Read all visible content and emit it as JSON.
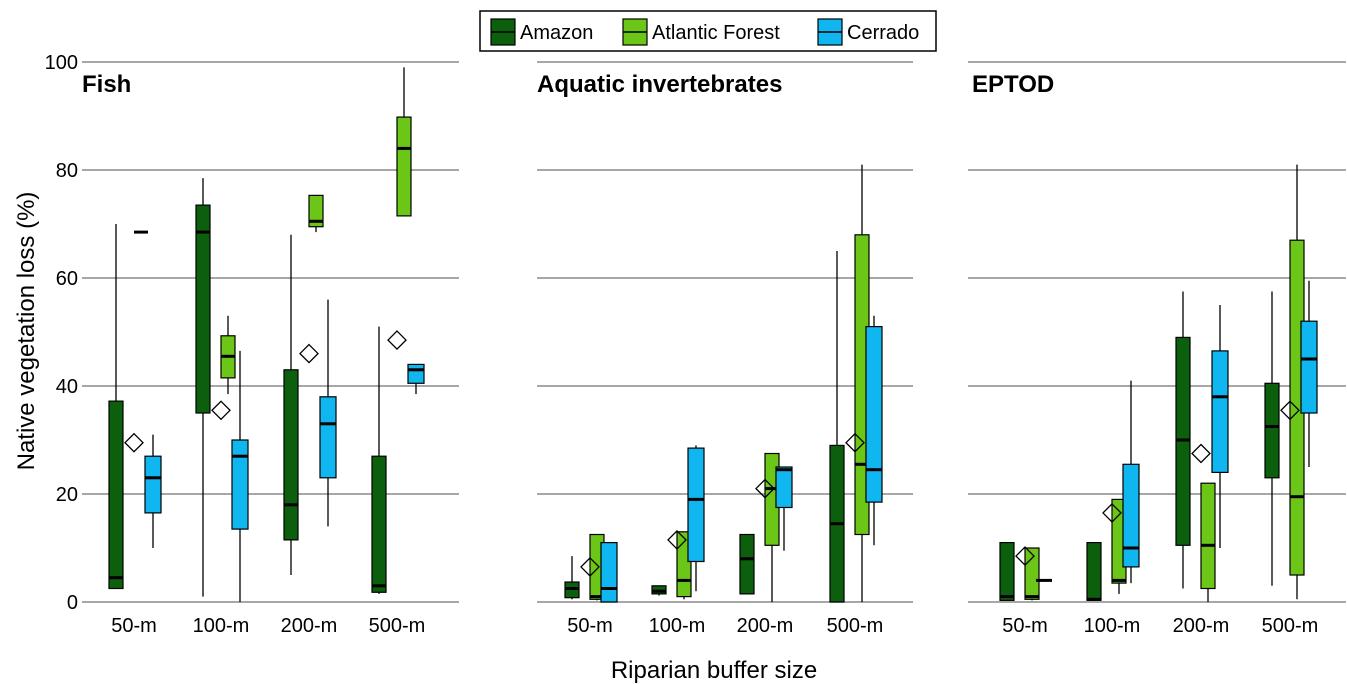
{
  "chart_data": {
    "type": "boxplot",
    "ylabel": "Native vegetation loss (%)",
    "xlabel": "Riparian buffer size",
    "ylim": [
      0,
      100
    ],
    "yticks": [
      0,
      20,
      40,
      60,
      80,
      100
    ],
    "categories": [
      "50-m",
      "100-m",
      "200-m",
      "500-m"
    ],
    "grid": "horizontal",
    "legend": {
      "position": "top-center",
      "entries": [
        {
          "name": "Amazon",
          "color": "#0c5f0c"
        },
        {
          "name": "Atlantic Forest",
          "color": "#6cc617"
        },
        {
          "name": "Cerrado",
          "color": "#10b6f0"
        }
      ]
    },
    "marker": {
      "shape": "diamond",
      "meaning": ""
    },
    "panels": [
      {
        "title": "Fish",
        "show_y_ticks": true,
        "groups": [
          {
            "category": "50-m",
            "diamond": 29.5,
            "boxes": [
              {
                "series": "Amazon",
                "whisker_low": 2.5,
                "q1": 2.5,
                "median": 4.5,
                "q3": 37.2,
                "whisker_high": 70
              },
              {
                "series": "Atlantic Forest",
                "whisker_low": 68.5,
                "q1": 68.5,
                "median": 68.5,
                "q3": 68.5,
                "whisker_high": 68.5
              },
              {
                "series": "Cerrado",
                "whisker_low": 10,
                "q1": 16.5,
                "median": 23,
                "q3": 27,
                "whisker_high": 31
              }
            ]
          },
          {
            "category": "100-m",
            "diamond": 35.5,
            "boxes": [
              {
                "series": "Amazon",
                "whisker_low": 1,
                "q1": 35,
                "median": 68.5,
                "q3": 73.5,
                "whisker_high": 78.5
              },
              {
                "series": "Atlantic Forest",
                "whisker_low": 38.5,
                "q1": 41.5,
                "median": 45.5,
                "q3": 49.3,
                "whisker_high": 53
              },
              {
                "series": "Cerrado",
                "whisker_low": 0,
                "q1": 13.5,
                "median": 27,
                "q3": 30,
                "whisker_high": 46.5
              }
            ]
          },
          {
            "category": "200-m",
            "diamond": 46,
            "boxes": [
              {
                "series": "Amazon",
                "whisker_low": 5,
                "q1": 11.5,
                "median": 18,
                "q3": 43,
                "whisker_high": 68
              },
              {
                "series": "Atlantic Forest",
                "whisker_low": 68.5,
                "q1": 69.5,
                "median": 70.5,
                "q3": 75.3,
                "whisker_high": 75.3
              },
              {
                "series": "Cerrado",
                "whisker_low": 14,
                "q1": 23,
                "median": 33,
                "q3": 38,
                "whisker_high": 56
              }
            ]
          },
          {
            "category": "500-m",
            "diamond": 48.5,
            "boxes": [
              {
                "series": "Amazon",
                "whisker_low": 1.5,
                "q1": 1.8,
                "median": 3,
                "q3": 27,
                "whisker_high": 51
              },
              {
                "series": "Atlantic Forest",
                "whisker_low": 71.5,
                "q1": 71.5,
                "median": 84,
                "q3": 89.8,
                "whisker_high": 99
              },
              {
                "series": "Cerrado",
                "whisker_low": 38.5,
                "q1": 40.5,
                "median": 43,
                "q3": 44,
                "whisker_high": 44
              }
            ]
          }
        ]
      },
      {
        "title": "Aquatic invertebrates",
        "show_y_ticks": false,
        "groups": [
          {
            "category": "50-m",
            "diamond": 6.5,
            "boxes": [
              {
                "series": "Amazon",
                "whisker_low": 0.5,
                "q1": 0.8,
                "median": 2.5,
                "q3": 3.7,
                "whisker_high": 8.5
              },
              {
                "series": "Atlantic Forest",
                "whisker_low": 0.3,
                "q1": 0.5,
                "median": 1,
                "q3": 12.5,
                "whisker_high": 12.5
              },
              {
                "series": "Cerrado",
                "whisker_low": 0,
                "q1": 0,
                "median": 2.5,
                "q3": 11,
                "whisker_high": 11
              }
            ]
          },
          {
            "category": "100-m",
            "diamond": 11.5,
            "boxes": [
              {
                "series": "Amazon",
                "whisker_low": 1.2,
                "q1": 1.5,
                "median": 2,
                "q3": 3,
                "whisker_high": 3
              },
              {
                "series": "Atlantic Forest",
                "whisker_low": 0.5,
                "q1": 1,
                "median": 4,
                "q3": 13,
                "whisker_high": 13
              },
              {
                "series": "Cerrado",
                "whisker_low": 2,
                "q1": 7.5,
                "median": 19,
                "q3": 28.5,
                "whisker_high": 29
              }
            ]
          },
          {
            "category": "200-m",
            "diamond": 21,
            "boxes": [
              {
                "series": "Amazon",
                "whisker_low": 1.5,
                "q1": 1.5,
                "median": 8,
                "q3": 12.5,
                "whisker_high": 12.5
              },
              {
                "series": "Atlantic Forest",
                "whisker_low": 0,
                "q1": 10.5,
                "median": 21,
                "q3": 27.5,
                "whisker_high": 27.5
              },
              {
                "series": "Cerrado",
                "whisker_low": 9.5,
                "q1": 17.5,
                "median": 24.5,
                "q3": 25,
                "whisker_high": 25
              }
            ]
          },
          {
            "category": "500-m",
            "diamond": 29.5,
            "boxes": [
              {
                "series": "Amazon",
                "whisker_low": 0,
                "q1": 0,
                "median": 14.5,
                "q3": 29,
                "whisker_high": 65
              },
              {
                "series": "Atlantic Forest",
                "whisker_low": 0,
                "q1": 12.5,
                "median": 25.5,
                "q3": 68,
                "whisker_high": 81
              },
              {
                "series": "Cerrado",
                "whisker_low": 10.5,
                "q1": 18.5,
                "median": 24.5,
                "q3": 51,
                "whisker_high": 53
              }
            ]
          }
        ]
      },
      {
        "title": "EPTOD",
        "show_y_ticks": false,
        "groups": [
          {
            "category": "50-m",
            "diamond": 8.5,
            "boxes": [
              {
                "series": "Amazon",
                "whisker_low": 0.3,
                "q1": 0.3,
                "median": 1,
                "q3": 11,
                "whisker_high": 11
              },
              {
                "series": "Atlantic Forest",
                "whisker_low": 0.3,
                "q1": 0.5,
                "median": 1,
                "q3": 10,
                "whisker_high": 10
              },
              {
                "series": "Cerrado",
                "whisker_low": 4,
                "q1": 4,
                "median": 4,
                "q3": 4,
                "whisker_high": 4
              }
            ]
          },
          {
            "category": "100-m",
            "diamond": 16.5,
            "boxes": [
              {
                "series": "Amazon",
                "whisker_low": 0.3,
                "q1": 0.3,
                "median": 0.5,
                "q3": 11,
                "whisker_high": 11
              },
              {
                "series": "Atlantic Forest",
                "whisker_low": 1.5,
                "q1": 3.5,
                "median": 4,
                "q3": 19,
                "whisker_high": 19
              },
              {
                "series": "Cerrado",
                "whisker_low": 3.5,
                "q1": 6.5,
                "median": 10,
                "q3": 25.5,
                "whisker_high": 41
              }
            ]
          },
          {
            "category": "200-m",
            "diamond": 27.5,
            "boxes": [
              {
                "series": "Amazon",
                "whisker_low": 2.5,
                "q1": 10.5,
                "median": 30,
                "q3": 49,
                "whisker_high": 57.5
              },
              {
                "series": "Atlantic Forest",
                "whisker_low": 0,
                "q1": 2.5,
                "median": 10.5,
                "q3": 22,
                "whisker_high": 22
              },
              {
                "series": "Cerrado",
                "whisker_low": 10,
                "q1": 24,
                "median": 38,
                "q3": 46.5,
                "whisker_high": 55
              }
            ]
          },
          {
            "category": "500-m",
            "diamond": 35.5,
            "boxes": [
              {
                "series": "Amazon",
                "whisker_low": 3,
                "q1": 23,
                "median": 32.5,
                "q3": 40.5,
                "whisker_high": 57.5
              },
              {
                "series": "Atlantic Forest",
                "whisker_low": 0.5,
                "q1": 5,
                "median": 19.5,
                "q3": 67,
                "whisker_high": 81
              },
              {
                "series": "Cerrado",
                "whisker_low": 25,
                "q1": 35,
                "median": 45,
                "q3": 52,
                "whisker_high": 59.5
              }
            ]
          }
        ]
      }
    ]
  }
}
